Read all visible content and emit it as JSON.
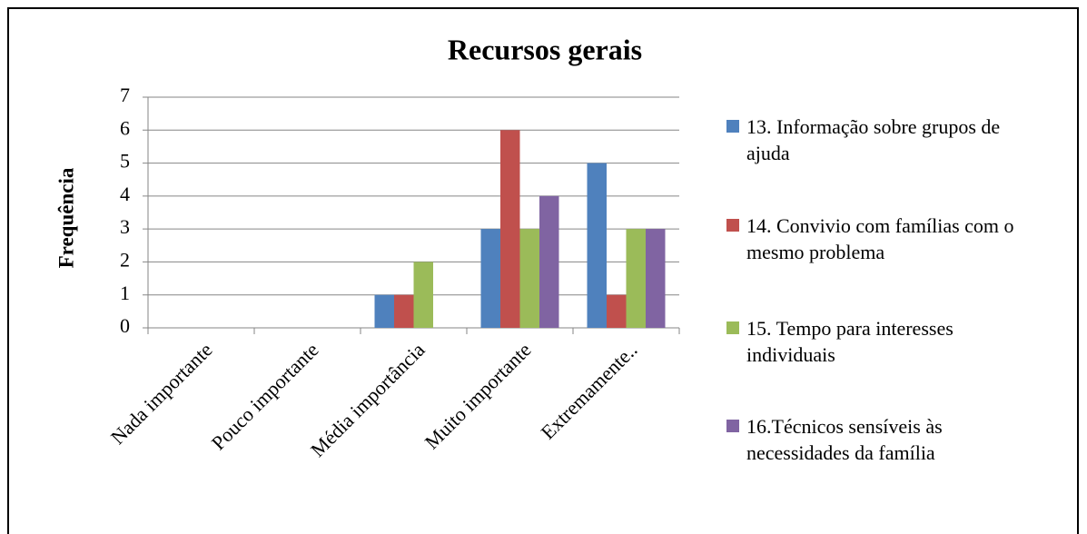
{
  "chart_data": {
    "type": "bar",
    "title": "Recursos gerais",
    "y_label": "Frequência",
    "categories": [
      "Nada importante",
      "Pouco importante",
      "Média importância",
      "Muito importante",
      "Extremamente.."
    ],
    "series": [
      {
        "name": "13. Informação sobre grupos de ajuda",
        "color": "#4f81bd",
        "values": [
          0,
          0,
          1,
          3,
          5
        ]
      },
      {
        "name": "14. Convivio com famílias com o mesmo problema",
        "color": "#c0504d",
        "values": [
          0,
          0,
          1,
          6,
          1
        ]
      },
      {
        "name": "15. Tempo para interesses individuais",
        "color": "#9bbb59",
        "values": [
          0,
          0,
          2,
          3,
          3
        ]
      },
      {
        "name": "16.Técnicos sensíveis às necessidades da família",
        "color": "#8064a2",
        "values": [
          0,
          0,
          0,
          4,
          3
        ]
      }
    ],
    "ylim": [
      0,
      7
    ],
    "yticks": [
      0,
      1,
      2,
      3,
      4,
      5,
      6,
      7
    ],
    "grid": true,
    "legend": "right"
  }
}
